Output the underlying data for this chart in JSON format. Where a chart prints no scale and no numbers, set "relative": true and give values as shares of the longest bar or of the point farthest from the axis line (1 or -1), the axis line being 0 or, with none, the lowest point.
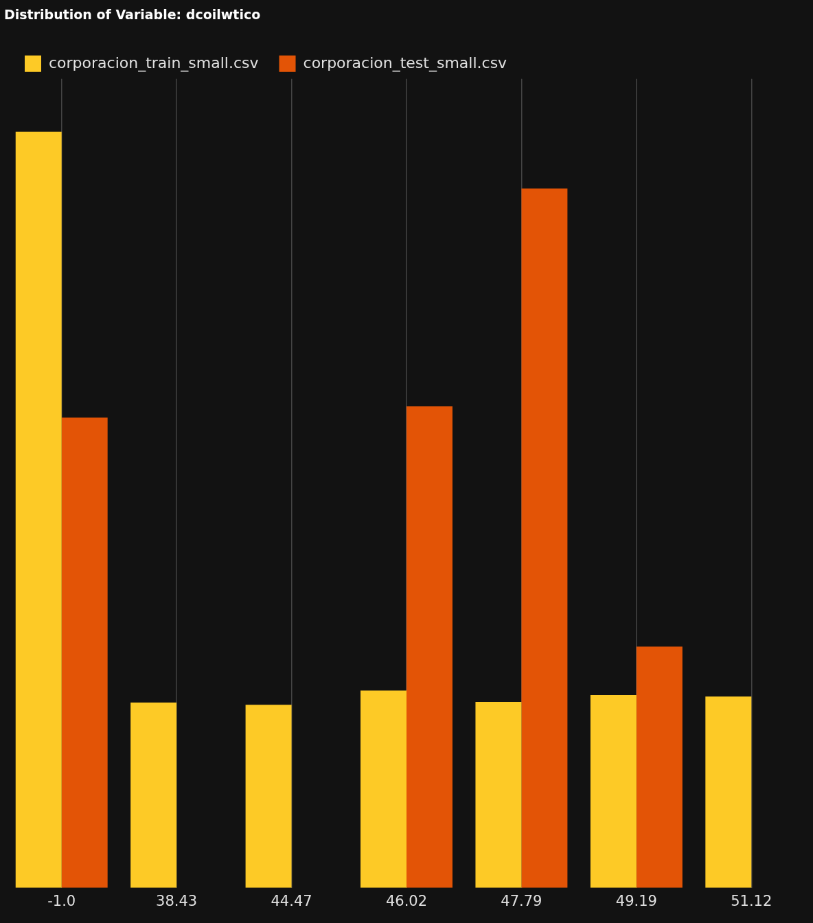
{
  "chart_data": {
    "type": "bar",
    "title": "Distribution of Variable: dcoilwtico",
    "relative": true,
    "categories": [
      "-1.0",
      "38.43",
      "44.47",
      "46.02",
      "47.79",
      "49.19",
      "51.12"
    ],
    "series": [
      {
        "name": "corporacion_train_small.csv",
        "color": "#fdca26",
        "values": [
          1,
          0.245,
          0.242,
          0.261,
          0.246,
          0.255,
          0.253
        ]
      },
      {
        "name": "corporacion_test_small.csv",
        "color": "#e35406",
        "values": [
          0.622,
          0,
          0,
          0.637,
          0.925,
          0.319,
          0
        ]
      }
    ],
    "grid": "x",
    "legend": "top left"
  }
}
